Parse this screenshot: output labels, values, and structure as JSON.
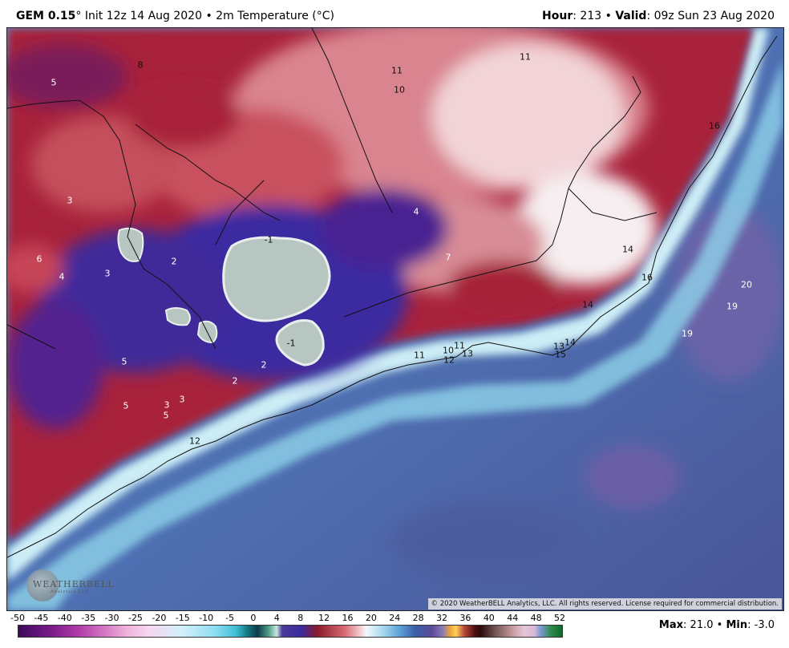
{
  "header": {
    "model": "GEM 0.15",
    "degree_mark": "°",
    "init": "Init 12z 14 Aug 2020",
    "bullet": "•",
    "field": "2m Temperature (°C)",
    "hour_label": "Hour",
    "hour_value": ": 213",
    "valid_label": "Valid",
    "valid_value": ": 09z Sun 23 Aug 2020"
  },
  "map": {
    "copyright": "© 2020 WeatherBELL Analytics, LLC. All rights reserved. License required for commercial distribution.",
    "logo_text": "WEATHERBELL",
    "logo_sub": "Analytics LLC",
    "value_labels": [
      {
        "text": "8",
        "color": "dark"
      },
      {
        "text": "5",
        "color": "light"
      },
      {
        "text": "11",
        "color": "dark"
      },
      {
        "text": "10",
        "color": "dark"
      },
      {
        "text": "11",
        "color": "dark"
      },
      {
        "text": "16",
        "color": "dark"
      },
      {
        "text": "3",
        "color": "light"
      },
      {
        "text": "4",
        "color": "light"
      },
      {
        "text": "-1",
        "color": "dark"
      },
      {
        "text": "6",
        "color": "light"
      },
      {
        "text": "4",
        "color": "light"
      },
      {
        "text": "3",
        "color": "light"
      },
      {
        "text": "2",
        "color": "light"
      },
      {
        "text": "7",
        "color": "light"
      },
      {
        "text": "14",
        "color": "dark"
      },
      {
        "text": "16",
        "color": "dark"
      },
      {
        "text": "20",
        "color": "light"
      },
      {
        "text": "19",
        "color": "light"
      },
      {
        "text": "14",
        "color": "dark"
      },
      {
        "text": "19",
        "color": "light"
      },
      {
        "text": "-1",
        "color": "dark"
      },
      {
        "text": "11",
        "color": "dark"
      },
      {
        "text": "10",
        "color": "dark"
      },
      {
        "text": "11",
        "color": "dark"
      },
      {
        "text": "12",
        "color": "dark"
      },
      {
        "text": "13",
        "color": "dark"
      },
      {
        "text": "13",
        "color": "dark"
      },
      {
        "text": "14",
        "color": "dark"
      },
      {
        "text": "15",
        "color": "dark"
      },
      {
        "text": "5",
        "color": "light"
      },
      {
        "text": "2",
        "color": "light"
      },
      {
        "text": "2",
        "color": "light"
      },
      {
        "text": "5",
        "color": "light"
      },
      {
        "text": "3",
        "color": "light"
      },
      {
        "text": "3",
        "color": "light"
      },
      {
        "text": "5",
        "color": "light"
      },
      {
        "text": "12",
        "color": "dark"
      }
    ]
  },
  "colorbar": {
    "ticks": [
      "-50",
      "-45",
      "-40",
      "-35",
      "-30",
      "-25",
      "-20",
      "-15",
      "-10",
      "-5",
      "0",
      "4",
      "8",
      "12",
      "16",
      "20",
      "24",
      "28",
      "32",
      "36",
      "40",
      "44",
      "48",
      "52"
    ],
    "max_label": "Max",
    "max_value": ": 21.0",
    "bullet": "•",
    "min_label": "Min",
    "min_value": ": -3.0"
  }
}
